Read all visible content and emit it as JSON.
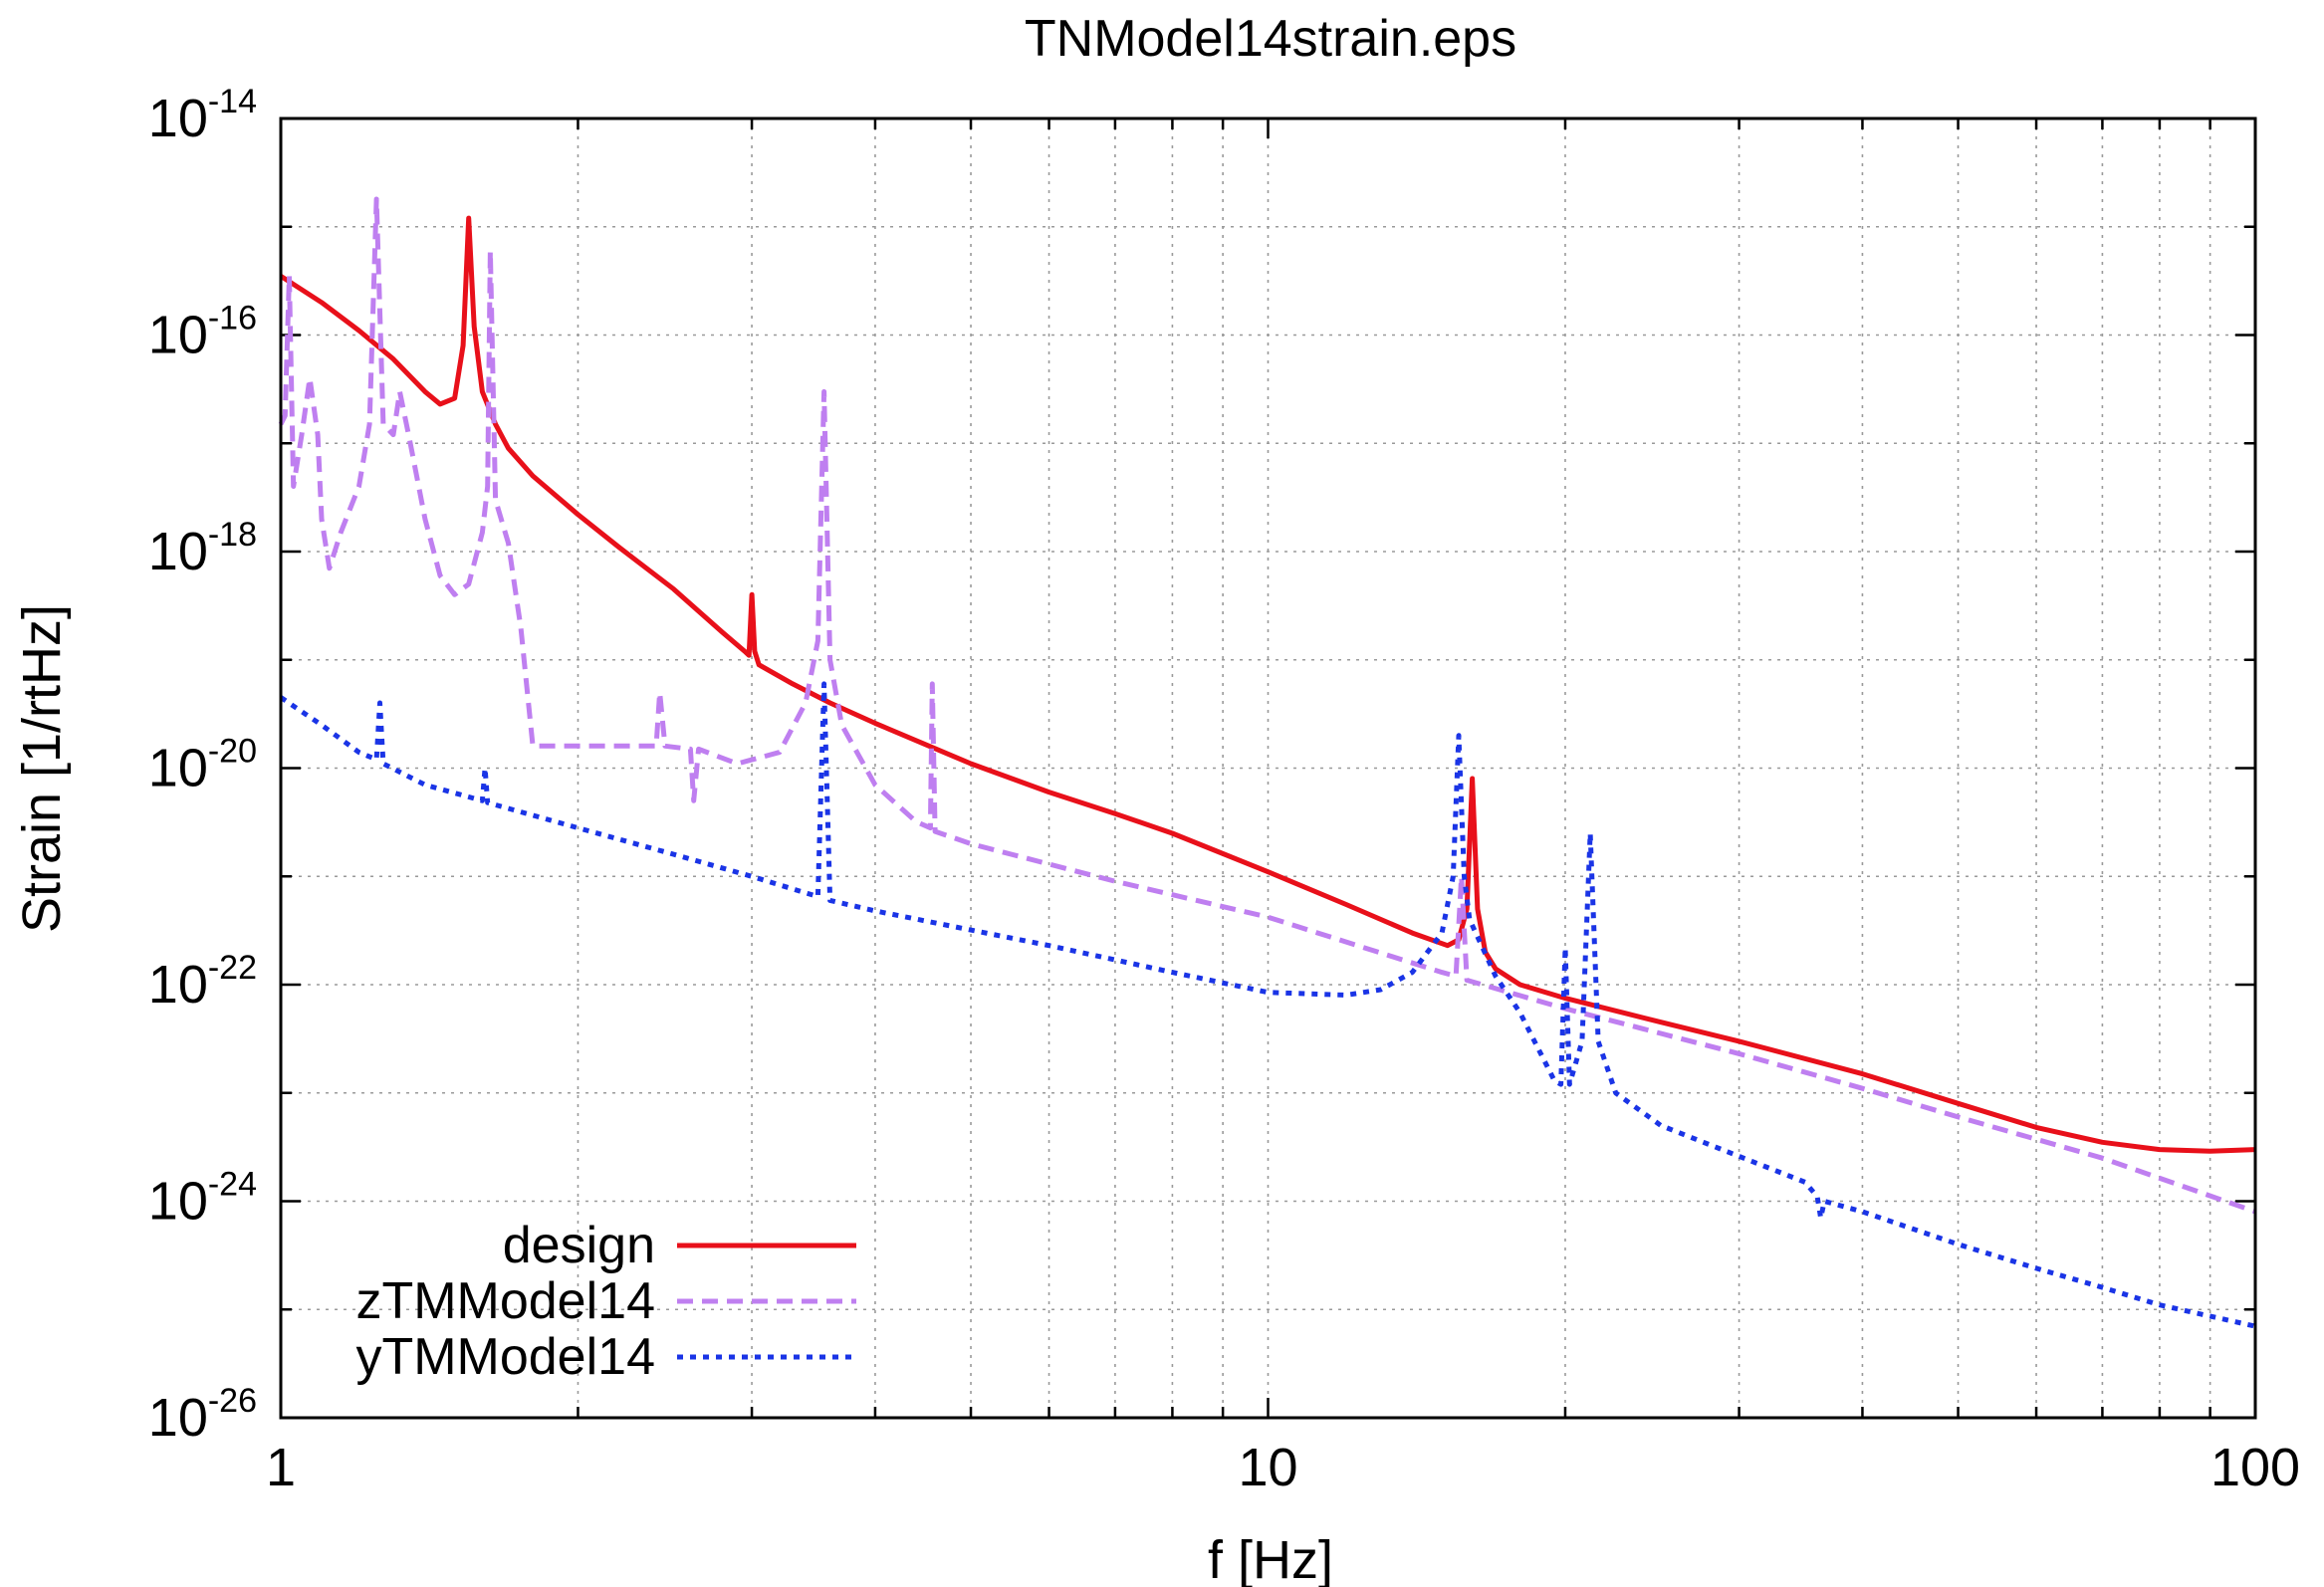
{
  "chart_data": {
    "type": "line",
    "title": "TNModel14strain.eps",
    "xlabel": "f [Hz]",
    "ylabel": "Strain [1/rtHz]",
    "xscale": "log",
    "yscale": "log",
    "xlim": [
      1,
      100
    ],
    "ylim": [
      1e-26,
      1e-14
    ],
    "grid": true,
    "legend_position": "bottom-left",
    "x_ticks": [
      {
        "value": 1,
        "label": "1"
      },
      {
        "value": 10,
        "label": "10"
      },
      {
        "value": 100,
        "label": "100"
      }
    ],
    "y_ticks": [
      {
        "value": 1e-26,
        "base": "10",
        "exp": "-26"
      },
      {
        "value": 1e-24,
        "base": "10",
        "exp": "-24"
      },
      {
        "value": 1e-22,
        "base": "10",
        "exp": "-22"
      },
      {
        "value": 1e-20,
        "base": "10",
        "exp": "-20"
      },
      {
        "value": 1e-18,
        "base": "10",
        "exp": "-18"
      },
      {
        "value": 1e-16,
        "base": "10",
        "exp": "-16"
      },
      {
        "value": 1e-14,
        "base": "10",
        "exp": "-14"
      }
    ],
    "series": [
      {
        "name": "design",
        "color": "#e8101a",
        "dash": "solid",
        "points": [
          [
            1.0,
            3.5e-16
          ],
          [
            1.1,
            2e-16
          ],
          [
            1.2,
            1.1e-16
          ],
          [
            1.3,
            6e-17
          ],
          [
            1.4,
            3e-17
          ],
          [
            1.45,
            2.3e-17
          ],
          [
            1.5,
            2.6e-17
          ],
          [
            1.53,
            8e-17
          ],
          [
            1.55,
            1.2e-15
          ],
          [
            1.57,
            1.2e-16
          ],
          [
            1.6,
            3e-17
          ],
          [
            1.65,
            1.5e-17
          ],
          [
            1.7,
            9e-18
          ],
          [
            1.8,
            5e-18
          ],
          [
            2.0,
            2.2e-18
          ],
          [
            2.2,
            1.1e-18
          ],
          [
            2.5,
            4.5e-19
          ],
          [
            2.8,
            1.8e-19
          ],
          [
            2.95,
            1.2e-19
          ],
          [
            2.98,
            1.1e-19
          ],
          [
            3.0,
            4e-19
          ],
          [
            3.02,
            1.2e-19
          ],
          [
            3.05,
            9e-20
          ],
          [
            3.3,
            6e-20
          ],
          [
            3.6,
            4e-20
          ],
          [
            4.0,
            2.6e-20
          ],
          [
            5.0,
            1.1e-20
          ],
          [
            6.0,
            6e-21
          ],
          [
            7.0,
            3.8e-21
          ],
          [
            8.0,
            2.5e-21
          ],
          [
            10.0,
            1.1e-21
          ],
          [
            12.0,
            5.5e-22
          ],
          [
            14.0,
            3e-22
          ],
          [
            15.2,
            2.3e-22
          ],
          [
            15.6,
            2.6e-22
          ],
          [
            15.9,
            5e-22
          ],
          [
            16.1,
            8e-21
          ],
          [
            16.3,
            5e-22
          ],
          [
            16.6,
            2e-22
          ],
          [
            17.0,
            1.4e-22
          ],
          [
            18.0,
            1e-22
          ],
          [
            20.0,
            7.5e-23
          ],
          [
            25.0,
            4.5e-23
          ],
          [
            30.0,
            3e-23
          ],
          [
            40.0,
            1.5e-23
          ],
          [
            50.0,
            8e-24
          ],
          [
            60.0,
            4.8e-24
          ],
          [
            70.0,
            3.5e-24
          ],
          [
            80.0,
            3e-24
          ],
          [
            90.0,
            2.9e-24
          ],
          [
            100.0,
            3e-24
          ]
        ]
      },
      {
        "name": "zTMModel14",
        "color": "#bf7ff0",
        "dash": "dashed",
        "points": [
          [
            1.0,
            1.5e-17
          ],
          [
            1.01,
            1.8e-17
          ],
          [
            1.02,
            3.5e-16
          ],
          [
            1.03,
            4e-18
          ],
          [
            1.05,
            1.2e-17
          ],
          [
            1.07,
            4e-17
          ],
          [
            1.09,
            1.2e-17
          ],
          [
            1.1,
            2e-18
          ],
          [
            1.12,
            7e-19
          ],
          [
            1.15,
            1.5e-18
          ],
          [
            1.2,
            4e-18
          ],
          [
            1.23,
            1.5e-17
          ],
          [
            1.25,
            1.8e-15
          ],
          [
            1.27,
            1.5e-17
          ],
          [
            1.3,
            1.2e-17
          ],
          [
            1.32,
            3e-17
          ],
          [
            1.35,
            1.1e-17
          ],
          [
            1.4,
            2e-18
          ],
          [
            1.45,
            6e-19
          ],
          [
            1.5,
            4e-19
          ],
          [
            1.55,
            5e-19
          ],
          [
            1.6,
            1.5e-18
          ],
          [
            1.62,
            4e-18
          ],
          [
            1.63,
            6e-16
          ],
          [
            1.65,
            3e-18
          ],
          [
            1.7,
            1.2e-18
          ],
          [
            1.75,
            2e-19
          ],
          [
            1.8,
            1.6e-20
          ],
          [
            2.0,
            1.6e-20
          ],
          [
            2.4,
            1.6e-20
          ],
          [
            2.42,
            5e-20
          ],
          [
            2.45,
            1.6e-20
          ],
          [
            2.6,
            1.5e-20
          ],
          [
            2.62,
            5e-21
          ],
          [
            2.65,
            1.5e-20
          ],
          [
            2.9,
            1.1e-20
          ],
          [
            3.2,
            1.4e-20
          ],
          [
            3.4,
            4e-20
          ],
          [
            3.5,
            1.5e-19
          ],
          [
            3.55,
            3e-17
          ],
          [
            3.6,
            1e-19
          ],
          [
            3.7,
            2.5e-20
          ],
          [
            4.0,
            7e-21
          ],
          [
            4.4,
            3.2e-21
          ],
          [
            4.55,
            2.8e-21
          ],
          [
            4.57,
            6e-20
          ],
          [
            4.6,
            2.6e-21
          ],
          [
            5.0,
            2e-21
          ],
          [
            7.0,
            9e-22
          ],
          [
            10.0,
            4.2e-22
          ],
          [
            15.0,
            1.3e-22
          ],
          [
            15.5,
            1.2e-22
          ],
          [
            15.7,
            1e-21
          ],
          [
            15.9,
            1.1e-22
          ],
          [
            20.0,
            6e-23
          ],
          [
            30.0,
            2.3e-23
          ],
          [
            40.0,
            1.1e-23
          ],
          [
            50.0,
            6e-24
          ],
          [
            70.0,
            2.5e-24
          ],
          [
            100.0,
            8e-25
          ]
        ]
      },
      {
        "name": "yTMModel14",
        "color": "#1a34e6",
        "dash": "dotted",
        "points": [
          [
            1.0,
            4.5e-20
          ],
          [
            1.1,
            2.5e-20
          ],
          [
            1.2,
            1.4e-20
          ],
          [
            1.25,
            1.2e-20
          ],
          [
            1.26,
            4e-20
          ],
          [
            1.27,
            1.1e-20
          ],
          [
            1.4,
            7e-21
          ],
          [
            1.6,
            5e-21
          ],
          [
            1.61,
            1e-20
          ],
          [
            1.62,
            4.8e-21
          ],
          [
            2.0,
            2.8e-21
          ],
          [
            2.5,
            1.6e-21
          ],
          [
            3.0,
            1e-21
          ],
          [
            3.5,
            6.5e-22
          ],
          [
            3.55,
            6e-20
          ],
          [
            3.6,
            6e-22
          ],
          [
            4.0,
            4.8e-22
          ],
          [
            5.0,
            3.2e-22
          ],
          [
            6.0,
            2.3e-22
          ],
          [
            8.0,
            1.3e-22
          ],
          [
            10.0,
            8.5e-23
          ],
          [
            12.0,
            8e-23
          ],
          [
            13.0,
            9e-23
          ],
          [
            14.0,
            1.3e-22
          ],
          [
            15.0,
            3e-22
          ],
          [
            15.4,
            1e-21
          ],
          [
            15.6,
            2e-20
          ],
          [
            15.8,
            1e-21
          ],
          [
            16.0,
            4e-22
          ],
          [
            17.0,
            1.2e-22
          ],
          [
            18.0,
            5.5e-23
          ],
          [
            19.5,
            1.3e-23
          ],
          [
            19.8,
            1.2e-23
          ],
          [
            20.0,
            2.2e-22
          ],
          [
            20.2,
            1.2e-23
          ],
          [
            20.8,
            3e-23
          ],
          [
            21.2,
            2.5e-21
          ],
          [
            21.6,
            3e-23
          ],
          [
            22.5,
            1e-23
          ],
          [
            25.0,
            5e-24
          ],
          [
            30.0,
            2.6e-24
          ],
          [
            35.0,
            1.5e-24
          ],
          [
            36.0,
            1.1e-24
          ],
          [
            36.3,
            7e-25
          ],
          [
            36.6,
            1e-24
          ],
          [
            40.0,
            8e-25
          ],
          [
            50.0,
            4e-25
          ],
          [
            60.0,
            2.4e-25
          ],
          [
            70.0,
            1.6e-25
          ],
          [
            80.0,
            1.1e-25
          ],
          [
            100.0,
            7e-26
          ]
        ]
      }
    ]
  }
}
